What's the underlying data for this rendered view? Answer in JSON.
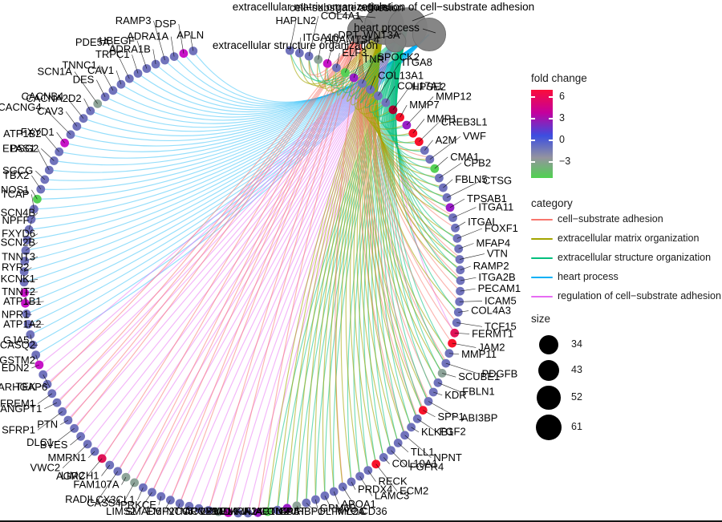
{
  "chart_data": {
    "type": "network",
    "hubs": [
      {
        "id": "cell",
        "label": "cell−substrate adhesion",
        "size": 43,
        "color": "#F8766D"
      },
      {
        "id": "matrix",
        "label": "extracellular matrix organization",
        "size": 61,
        "color": "#A3A500"
      },
      {
        "id": "structure",
        "label": "extracellular structure organization",
        "size": 61,
        "color": "#00BF7D"
      },
      {
        "id": "heart",
        "label": "heart process",
        "size": 52,
        "color": "#00B0F6"
      },
      {
        "id": "regulation",
        "label": "regulation of cell−substrate adhesion",
        "size": 34,
        "color": "#E76BF3"
      }
    ],
    "fold_change_palette": {
      "default": "#7173BC",
      "magenta": "#C713C7",
      "purple": "#9A1EC8",
      "red": "#F8132B",
      "crimson": "#E01458",
      "darkred": "#AA0030",
      "green": "#56D156",
      "gray": "#8EA49A"
    },
    "genes": [
      {
        "name": "APLN",
        "fc": "default",
        "cats": [
          "heart"
        ]
      },
      {
        "name": "DSP",
        "fc": "magenta",
        "cats": [
          "heart"
        ]
      },
      {
        "name": "ADRA1A",
        "fc": "default",
        "cats": [
          "heart"
        ]
      },
      {
        "name": "RAMP3",
        "fc": "default",
        "cats": [
          "heart"
        ]
      },
      {
        "name": "ADRA1B",
        "fc": "default",
        "cats": [
          "heart"
        ]
      },
      {
        "name": "HBEGF",
        "fc": "default",
        "cats": [
          "heart"
        ]
      },
      {
        "name": "TRPC1",
        "fc": "default",
        "cats": [
          "heart"
        ]
      },
      {
        "name": "PDE5A",
        "fc": "default",
        "cats": [
          "heart"
        ]
      },
      {
        "name": "CAV1",
        "fc": "default",
        "cats": [
          "heart"
        ]
      },
      {
        "name": "TNNC1",
        "fc": "default",
        "cats": [
          "heart"
        ]
      },
      {
        "name": "DES",
        "fc": "default",
        "cats": [
          "heart"
        ]
      },
      {
        "name": "SCN1A",
        "fc": "gray",
        "cats": [
          "heart"
        ]
      },
      {
        "name": "CACNA2D2",
        "fc": "default",
        "cats": [
          "heart"
        ]
      },
      {
        "name": "CACNB4",
        "fc": "default",
        "cats": [
          "heart"
        ]
      },
      {
        "name": "CAV3",
        "fc": "default",
        "cats": [
          "heart"
        ]
      },
      {
        "name": "CACNG4",
        "fc": "default",
        "cats": [
          "heart"
        ]
      },
      {
        "name": "FXYD1",
        "fc": "magenta",
        "cats": [
          "heart"
        ]
      },
      {
        "name": "ATP1B2",
        "fc": "default",
        "cats": [
          "heart"
        ]
      },
      {
        "name": "DSG2",
        "fc": "default",
        "cats": [
          "heart"
        ]
      },
      {
        "name": "EPAS1",
        "fc": "default",
        "cats": [
          "heart"
        ]
      },
      {
        "name": "SGCG",
        "fc": "default",
        "cats": [
          "heart"
        ]
      },
      {
        "name": "TBX2",
        "fc": "default",
        "cats": [
          "heart"
        ]
      },
      {
        "name": "NOS1",
        "fc": "green",
        "cats": [
          "heart"
        ]
      },
      {
        "name": "TCAP",
        "fc": "default",
        "cats": [
          "heart"
        ]
      },
      {
        "name": "SCN4B",
        "fc": "default",
        "cats": [
          "heart"
        ]
      },
      {
        "name": "NPFF",
        "fc": "default",
        "cats": [
          "heart"
        ]
      },
      {
        "name": "FXYD6",
        "fc": "default",
        "cats": [
          "heart"
        ]
      },
      {
        "name": "SCN2B",
        "fc": "default",
        "cats": [
          "heart"
        ]
      },
      {
        "name": "TNNT3",
        "fc": "default",
        "cats": [
          "heart"
        ]
      },
      {
        "name": "RYR2",
        "fc": "default",
        "cats": [
          "heart"
        ]
      },
      {
        "name": "KCNK1",
        "fc": "default",
        "cats": [
          "heart"
        ]
      },
      {
        "name": "TNNT2",
        "fc": "magenta",
        "cats": [
          "heart"
        ]
      },
      {
        "name": "ATP1B1",
        "fc": "magenta",
        "cats": [
          "heart"
        ]
      },
      {
        "name": "NPR1",
        "fc": "default",
        "cats": [
          "heart"
        ]
      },
      {
        "name": "ATP1A2",
        "fc": "default",
        "cats": [
          "heart"
        ]
      },
      {
        "name": "GJA5",
        "fc": "default",
        "cats": [
          "heart"
        ]
      },
      {
        "name": "CASQ2",
        "fc": "default",
        "cats": [
          "heart"
        ]
      },
      {
        "name": "GSTM2",
        "fc": "default",
        "cats": [
          "heart"
        ]
      },
      {
        "name": "EDN2",
        "fc": "magenta",
        "cats": [
          "regulation"
        ]
      },
      {
        "name": "ARHGAP6",
        "fc": "default",
        "cats": [
          "regulation"
        ]
      },
      {
        "name": "TEK",
        "fc": "default",
        "cats": [
          "regulation",
          "cell"
        ]
      },
      {
        "name": "FREM1",
        "fc": "default",
        "cats": [
          "regulation"
        ]
      },
      {
        "name": "ANGPT1",
        "fc": "default",
        "cats": [
          "regulation",
          "cell"
        ]
      },
      {
        "name": "SFRP1",
        "fc": "default",
        "cats": [
          "regulation",
          "cell"
        ]
      },
      {
        "name": "PTN",
        "fc": "default",
        "cats": [
          "regulation",
          "cell"
        ]
      },
      {
        "name": "DLC1",
        "fc": "default",
        "cats": [
          "regulation",
          "cell"
        ]
      },
      {
        "name": "BVES",
        "fc": "default",
        "cats": [
          "regulation"
        ]
      },
      {
        "name": "VWC2",
        "fc": "default",
        "cats": [
          "regulation"
        ]
      },
      {
        "name": "MMRN1",
        "fc": "default",
        "cats": [
          "regulation"
        ]
      },
      {
        "name": "AGR2",
        "fc": "crimson",
        "cats": [
          "regulation",
          "cell"
        ]
      },
      {
        "name": "LIMCH1",
        "fc": "default",
        "cats": [
          "regulation"
        ]
      },
      {
        "name": "RADIL",
        "fc": "default",
        "cats": [
          "regulation",
          "cell"
        ]
      },
      {
        "name": "FAM107A",
        "fc": "gray",
        "cats": [
          "regulation"
        ]
      },
      {
        "name": "CASS4",
        "fc": "gray",
        "cats": [
          "regulation",
          "cell"
        ]
      },
      {
        "name": "CX3CL1",
        "fc": "default",
        "cats": [
          "regulation",
          "cell"
        ]
      },
      {
        "name": "LIMS2",
        "fc": "default",
        "cats": [
          "regulation",
          "cell"
        ]
      },
      {
        "name": "PRKCE",
        "fc": "default",
        "cats": [
          "regulation"
        ]
      },
      {
        "name": "SMAD6",
        "fc": "default",
        "cats": [
          "regulation",
          "cell"
        ]
      },
      {
        "name": "EMP2",
        "fc": "default",
        "cats": [
          "regulation",
          "cell"
        ]
      },
      {
        "name": "NTN5",
        "fc": "default",
        "cats": [
          "regulation"
        ]
      },
      {
        "name": "CORO2B",
        "fc": "default",
        "cats": [
          "regulation"
        ]
      },
      {
        "name": "ACVRL1",
        "fc": "default",
        "cats": [
          "regulation",
          "cell"
        ]
      },
      {
        "name": "LYVE1",
        "fc": "gray",
        "cats": [
          "regulation"
        ]
      },
      {
        "name": "MDK",
        "fc": "magenta",
        "cats": [
          "regulation",
          "cell"
        ]
      },
      {
        "name": "MMRN2",
        "fc": "default",
        "cats": [
          "regulation"
        ]
      },
      {
        "name": "KIF14",
        "fc": "default",
        "cats": [
          "regulation"
        ]
      },
      {
        "name": "AJAP1",
        "fc": "purple",
        "cats": [
          "regulation",
          "cell"
        ]
      },
      {
        "name": "ACTN2",
        "fc": "green",
        "cats": [
          "matrix",
          "structure"
        ]
      },
      {
        "name": "COL4A6",
        "fc": "default",
        "cats": [
          "matrix",
          "structure"
        ]
      },
      {
        "name": "LCAT",
        "fc": "purple",
        "cats": [
          "matrix",
          "structure"
        ]
      },
      {
        "name": "GPIHBP1",
        "fc": "gray",
        "cats": [
          "matrix",
          "structure"
        ]
      },
      {
        "name": "OLFML2A",
        "fc": "default",
        "cats": [
          "matrix",
          "structure"
        ]
      },
      {
        "name": "GPM6B",
        "fc": "default",
        "cats": [
          "matrix",
          "structure"
        ]
      },
      {
        "name": "MYOC",
        "fc": "default",
        "cats": [
          "matrix",
          "structure"
        ]
      },
      {
        "name": "APOA1",
        "fc": "default",
        "cats": [
          "matrix",
          "structure"
        ]
      },
      {
        "name": "CD36",
        "fc": "default",
        "cats": [
          "cell",
          "matrix"
        ]
      },
      {
        "name": "PRDX4",
        "fc": "default",
        "cats": [
          "matrix",
          "structure"
        ]
      },
      {
        "name": "LAMC3",
        "fc": "default",
        "cats": [
          "matrix",
          "structure"
        ]
      },
      {
        "name": "RECK",
        "fc": "default",
        "cats": [
          "matrix",
          "structure"
        ]
      },
      {
        "name": "ECM2",
        "fc": "red",
        "cats": [
          "matrix",
          "structure"
        ]
      },
      {
        "name": "COL10A1",
        "fc": "default",
        "cats": [
          "matrix",
          "structure"
        ]
      },
      {
        "name": "FGFR4",
        "fc": "default",
        "cats": [
          "matrix",
          "structure"
        ]
      },
      {
        "name": "TLL1",
        "fc": "default",
        "cats": [
          "matrix",
          "structure"
        ]
      },
      {
        "name": "NPNT",
        "fc": "default",
        "cats": [
          "cell",
          "matrix",
          "structure"
        ]
      },
      {
        "name": "KLKB1",
        "fc": "default",
        "cats": [
          "matrix",
          "structure"
        ]
      },
      {
        "name": "FGF2",
        "fc": "default",
        "cats": [
          "cell",
          "matrix",
          "structure"
        ]
      },
      {
        "name": "SPP1",
        "fc": "red",
        "cats": [
          "cell",
          "matrix",
          "structure"
        ]
      },
      {
        "name": "ABI3BP",
        "fc": "default",
        "cats": [
          "cell",
          "matrix",
          "structure"
        ]
      },
      {
        "name": "KDR",
        "fc": "default",
        "cats": [
          "cell",
          "structure"
        ]
      },
      {
        "name": "FBLN1",
        "fc": "default",
        "cats": [
          "matrix",
          "structure"
        ]
      },
      {
        "name": "SCUBE1",
        "fc": "gray",
        "cats": [
          "matrix",
          "structure"
        ]
      },
      {
        "name": "PDGFB",
        "fc": "default",
        "cats": [
          "cell",
          "matrix",
          "structure"
        ]
      },
      {
        "name": "MMP11",
        "fc": "default",
        "cats": [
          "matrix",
          "structure"
        ]
      },
      {
        "name": "JAM2",
        "fc": "red",
        "cats": [
          "cell"
        ]
      },
      {
        "name": "FERMT1",
        "fc": "crimson",
        "cats": [
          "cell",
          "regulation"
        ]
      },
      {
        "name": "TCF15",
        "fc": "default",
        "cats": [
          "cell"
        ]
      },
      {
        "name": "COL4A3",
        "fc": "default",
        "cats": [
          "matrix",
          "structure"
        ]
      },
      {
        "name": "ICAM5",
        "fc": "default",
        "cats": [
          "cell"
        ]
      },
      {
        "name": "PECAM1",
        "fc": "default",
        "cats": [
          "cell"
        ]
      },
      {
        "name": "ITGA2B",
        "fc": "default",
        "cats": [
          "cell",
          "matrix",
          "structure"
        ]
      },
      {
        "name": "RAMP2",
        "fc": "default",
        "cats": [
          "matrix",
          "structure"
        ]
      },
      {
        "name": "VTN",
        "fc": "default",
        "cats": [
          "cell",
          "matrix",
          "structure"
        ]
      },
      {
        "name": "MFAP4",
        "fc": "default",
        "cats": [
          "matrix",
          "structure"
        ]
      },
      {
        "name": "FOXF1",
        "fc": "default",
        "cats": [
          "matrix",
          "structure"
        ]
      },
      {
        "name": "ITGAL",
        "fc": "default",
        "cats": [
          "cell"
        ]
      },
      {
        "name": "ITGA11",
        "fc": "default",
        "cats": [
          "cell",
          "matrix",
          "structure"
        ]
      },
      {
        "name": "TPSAB1",
        "fc": "purple",
        "cats": [
          "matrix",
          "structure"
        ]
      },
      {
        "name": "CTSG",
        "fc": "default",
        "cats": [
          "matrix",
          "structure"
        ]
      },
      {
        "name": "FBLN5",
        "fc": "default",
        "cats": [
          "matrix",
          "structure"
        ]
      },
      {
        "name": "CPB2",
        "fc": "default",
        "cats": [
          "matrix",
          "structure"
        ]
      },
      {
        "name": "CMA1",
        "fc": "green",
        "cats": [
          "matrix",
          "structure"
        ]
      },
      {
        "name": "VWF",
        "fc": "default",
        "cats": [
          "cell",
          "matrix",
          "structure"
        ]
      },
      {
        "name": "A2M",
        "fc": "default",
        "cats": [
          "matrix",
          "structure"
        ]
      },
      {
        "name": "CREB3L1",
        "fc": "red",
        "cats": [
          "matrix",
          "structure"
        ]
      },
      {
        "name": "MMP1",
        "fc": "red",
        "cats": [
          "matrix",
          "structure"
        ]
      },
      {
        "name": "MMP12",
        "fc": "purple",
        "cats": [
          "matrix",
          "structure"
        ]
      },
      {
        "name": "MMP7",
        "fc": "red",
        "cats": [
          "matrix",
          "structure"
        ]
      },
      {
        "name": "HPSE2",
        "fc": "darkred",
        "cats": [
          "matrix",
          "structure"
        ]
      },
      {
        "name": "COL17A1",
        "fc": "default",
        "cats": [
          "cell",
          "matrix",
          "structure"
        ]
      },
      {
        "name": "ITGA8",
        "fc": "default",
        "cats": [
          "cell",
          "matrix",
          "structure"
        ]
      },
      {
        "name": "COL13A1",
        "fc": "default",
        "cats": [
          "matrix",
          "structure"
        ]
      },
      {
        "name": "SPOCK2",
        "fc": "default",
        "cats": [
          "matrix",
          "structure"
        ]
      },
      {
        "name": "TNR",
        "fc": "purple",
        "cats": [
          "cell",
          "matrix",
          "structure"
        ]
      },
      {
        "name": "WNT3A",
        "fc": "green",
        "cats": [
          "matrix",
          "structure"
        ]
      },
      {
        "name": "ELF3",
        "fc": "default",
        "cats": [
          "matrix",
          "structure"
        ]
      },
      {
        "name": "DPT",
        "fc": "magenta",
        "cats": [
          "cell",
          "matrix",
          "structure"
        ]
      },
      {
        "name": "ADAMTSL4",
        "fc": "gray",
        "cats": [
          "matrix",
          "structure"
        ]
      },
      {
        "name": "COL4A1",
        "fc": "default",
        "cats": [
          "cell",
          "matrix",
          "structure"
        ]
      },
      {
        "name": "ITGA10",
        "fc": "default",
        "cats": [
          "cell",
          "matrix",
          "structure"
        ]
      },
      {
        "name": "HAPLN2",
        "fc": "default",
        "cats": [
          "matrix",
          "structure"
        ]
      }
    ]
  },
  "legend": {
    "fold_change": {
      "title": "fold change",
      "ticks": [
        "6",
        "3",
        "0",
        "−3"
      ],
      "gradient_stops": [
        "#fb0d3a 0%",
        "#c4009e 26%",
        "#3c4ee0 52%",
        "#94949f 77%",
        "#4fd24f 100%"
      ]
    },
    "category": {
      "title": "category"
    },
    "size": {
      "title": "size",
      "values": [
        "34",
        "43",
        "52",
        "61"
      ]
    }
  }
}
